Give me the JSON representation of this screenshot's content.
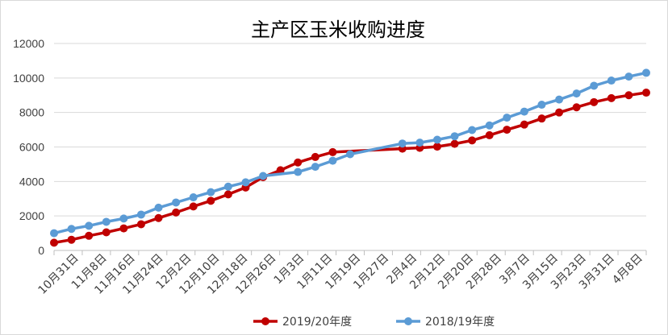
{
  "chart_data": {
    "type": "line",
    "title": "主产区玉米收购进度",
    "xlabel": "",
    "ylabel": "",
    "ylim": [
      0,
      12000
    ],
    "yticks": [
      "0",
      "2000",
      "4000",
      "6000",
      "8000",
      "10000",
      "12000"
    ],
    "grid": true,
    "legend_position": "bottom",
    "x_tick_labels": [
      "10月31日",
      "11月8日",
      "11月16日",
      "11月24日",
      "12月2日",
      "12月10日",
      "12月18日",
      "12月26日",
      "1月3日",
      "1月11日",
      "1月19日",
      "1月27日",
      "2月4日",
      "2月12日",
      "2月20日",
      "2月28日",
      "3月7日",
      "3月15日",
      "3月23日",
      "3月31日",
      "4月8日"
    ],
    "series": [
      {
        "name": "2019/20年度",
        "color": "#c00000",
        "points": [
          [
            0,
            450
          ],
          [
            1,
            620
          ],
          [
            2,
            850
          ],
          [
            3,
            1050
          ],
          [
            4,
            1280
          ],
          [
            5,
            1520
          ],
          [
            6,
            1880
          ],
          [
            7,
            2200
          ],
          [
            8,
            2550
          ],
          [
            9,
            2880
          ],
          [
            10,
            3250
          ],
          [
            11,
            3650
          ],
          [
            12,
            4250
          ],
          [
            13,
            4650
          ],
          [
            14,
            5100
          ],
          [
            15,
            5420
          ],
          [
            16,
            5700
          ],
          [
            20,
            5900
          ],
          [
            21,
            5950
          ],
          [
            22,
            6020
          ],
          [
            23,
            6180
          ],
          [
            24,
            6380
          ],
          [
            25,
            6680
          ],
          [
            26,
            7000
          ],
          [
            27,
            7300
          ],
          [
            28,
            7650
          ],
          [
            29,
            8000
          ],
          [
            30,
            8300
          ],
          [
            31,
            8600
          ],
          [
            32,
            8830
          ],
          [
            33,
            9000
          ],
          [
            34,
            9150
          ]
        ]
      },
      {
        "name": "2018/19年度",
        "color": "#5b9bd5",
        "points": [
          [
            0,
            1000
          ],
          [
            1,
            1250
          ],
          [
            2,
            1430
          ],
          [
            3,
            1660
          ],
          [
            4,
            1850
          ],
          [
            5,
            2080
          ],
          [
            6,
            2480
          ],
          [
            7,
            2780
          ],
          [
            8,
            3080
          ],
          [
            9,
            3380
          ],
          [
            10,
            3700
          ],
          [
            11,
            3950
          ],
          [
            12,
            4320
          ],
          [
            14,
            4550
          ],
          [
            15,
            4850
          ],
          [
            16,
            5200
          ],
          [
            17,
            5580
          ],
          [
            20,
            6200
          ],
          [
            21,
            6250
          ],
          [
            22,
            6420
          ],
          [
            23,
            6620
          ],
          [
            24,
            6980
          ],
          [
            25,
            7250
          ],
          [
            26,
            7700
          ],
          [
            27,
            8050
          ],
          [
            28,
            8450
          ],
          [
            29,
            8750
          ],
          [
            30,
            9100
          ],
          [
            31,
            9550
          ],
          [
            32,
            9850
          ],
          [
            33,
            10080
          ],
          [
            34,
            10300
          ]
        ]
      }
    ]
  }
}
